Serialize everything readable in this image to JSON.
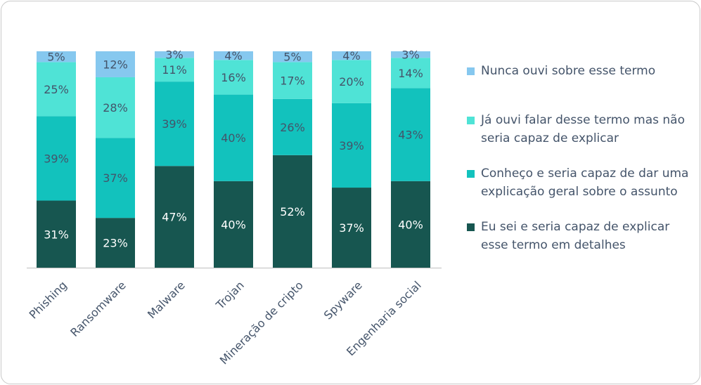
{
  "chart_data": {
    "type": "bar",
    "stacked": true,
    "percent_stacked": true,
    "categories": [
      "Phishing",
      "Ransomware",
      "Malware",
      "Trojan",
      "Mineração de cripto",
      "Spyware",
      "Engenharia social"
    ],
    "series": [
      {
        "name": "Eu sei e seria capaz de explicar esse termo em detalhes",
        "color": "#175650",
        "values": [
          31,
          23,
          47,
          40,
          52,
          37,
          40
        ],
        "labels": [
          "31%",
          "23%",
          "47%",
          "40%",
          "52%",
          "37%",
          "40%"
        ]
      },
      {
        "name": "Conheço e seria capaz de dar uma explicação geral sobre o assunto",
        "color": "#12c2bd",
        "values": [
          39,
          37,
          39,
          40,
          26,
          39,
          43
        ],
        "labels": [
          "39%",
          "37%",
          "39%",
          "40%",
          "26%",
          "39%",
          "43%"
        ]
      },
      {
        "name": "Já ouvi falar desse termo mas não seria capaz de explicar",
        "color": "#4fe3d6",
        "values": [
          25,
          28,
          11,
          16,
          17,
          20,
          14
        ],
        "labels": [
          "25%",
          "28%",
          "11%",
          "16%",
          "17%",
          "20%",
          "14%"
        ]
      },
      {
        "name": "Nunca ouvi sobre esse termo",
        "color": "#86c8ef",
        "values": [
          5,
          12,
          3,
          4,
          5,
          4,
          3
        ],
        "labels": [
          "5%",
          "12%",
          "3%",
          "4%",
          "5%",
          "4%",
          "3%"
        ]
      }
    ],
    "ylim": [
      0,
      100
    ],
    "grid": false,
    "legend_position": "right",
    "label_colors": {
      "dark": "#ffffff",
      "light": "#44546a"
    }
  }
}
